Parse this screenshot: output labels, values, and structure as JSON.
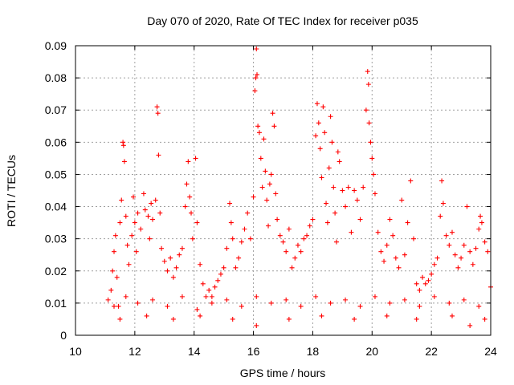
{
  "chart_data": {
    "type": "scatter",
    "title": "Day 070 of 2020, Rate Of TEC Index for receiver p035",
    "xlabel": "GPS time / hours",
    "ylabel": "ROTI / TECUs",
    "xlim": [
      10,
      24
    ],
    "ylim": [
      0,
      0.09
    ],
    "xticks": [
      "10",
      "12",
      "14",
      "16",
      "18",
      "20",
      "22",
      "24"
    ],
    "yticks": [
      "0",
      "0.01",
      "0.02",
      "0.03",
      "0.04",
      "0.05",
      "0.06",
      "0.07",
      "0.08",
      "0.09"
    ],
    "grid": true,
    "marker": "+",
    "series": [
      {
        "name": "ROTI",
        "color": "#ff0000",
        "points": [
          [
            11.1,
            0.011
          ],
          [
            11.2,
            0.014
          ],
          [
            11.25,
            0.02
          ],
          [
            11.3,
            0.026
          ],
          [
            11.35,
            0.031
          ],
          [
            11.4,
            0.018
          ],
          [
            11.45,
            0.009
          ],
          [
            11.5,
            0.035
          ],
          [
            11.55,
            0.042
          ],
          [
            11.6,
            0.06
          ],
          [
            11.62,
            0.059
          ],
          [
            11.65,
            0.054
          ],
          [
            11.7,
            0.037
          ],
          [
            11.75,
            0.028
          ],
          [
            11.8,
            0.022
          ],
          [
            11.9,
            0.031
          ],
          [
            11.95,
            0.043
          ],
          [
            12.0,
            0.035
          ],
          [
            12.05,
            0.026
          ],
          [
            12.1,
            0.038
          ],
          [
            12.2,
            0.033
          ],
          [
            12.3,
            0.044
          ],
          [
            12.35,
            0.039
          ],
          [
            12.45,
            0.037
          ],
          [
            12.5,
            0.03
          ],
          [
            12.55,
            0.041
          ],
          [
            12.6,
            0.036
          ],
          [
            12.7,
            0.042
          ],
          [
            12.75,
            0.071
          ],
          [
            12.78,
            0.069
          ],
          [
            12.8,
            0.056
          ],
          [
            12.85,
            0.038
          ],
          [
            12.9,
            0.027
          ],
          [
            13.0,
            0.023
          ],
          [
            13.1,
            0.02
          ],
          [
            13.2,
            0.024
          ],
          [
            13.3,
            0.018
          ],
          [
            13.4,
            0.021
          ],
          [
            13.5,
            0.025
          ],
          [
            13.6,
            0.027
          ],
          [
            13.7,
            0.04
          ],
          [
            13.75,
            0.047
          ],
          [
            13.8,
            0.054
          ],
          [
            13.85,
            0.043
          ],
          [
            13.9,
            0.038
          ],
          [
            13.95,
            0.03
          ],
          [
            14.05,
            0.055
          ],
          [
            14.1,
            0.035
          ],
          [
            14.2,
            0.022
          ],
          [
            14.3,
            0.016
          ],
          [
            14.4,
            0.012
          ],
          [
            14.5,
            0.014
          ],
          [
            14.6,
            0.012
          ],
          [
            14.7,
            0.015
          ],
          [
            14.8,
            0.017
          ],
          [
            14.9,
            0.019
          ],
          [
            15.0,
            0.021
          ],
          [
            15.1,
            0.027
          ],
          [
            15.2,
            0.041
          ],
          [
            15.25,
            0.035
          ],
          [
            15.3,
            0.03
          ],
          [
            15.4,
            0.021
          ],
          [
            15.5,
            0.024
          ],
          [
            15.6,
            0.029
          ],
          [
            15.7,
            0.033
          ],
          [
            15.8,
            0.038
          ],
          [
            15.9,
            0.03
          ],
          [
            16.0,
            0.043
          ],
          [
            16.05,
            0.076
          ],
          [
            16.08,
            0.08
          ],
          [
            16.1,
            0.089
          ],
          [
            16.12,
            0.081
          ],
          [
            16.15,
            0.065
          ],
          [
            16.2,
            0.063
          ],
          [
            16.25,
            0.055
          ],
          [
            16.3,
            0.046
          ],
          [
            16.35,
            0.061
          ],
          [
            16.4,
            0.051
          ],
          [
            16.45,
            0.042
          ],
          [
            16.5,
            0.034
          ],
          [
            16.55,
            0.047
          ],
          [
            16.6,
            0.05
          ],
          [
            16.65,
            0.069
          ],
          [
            16.7,
            0.065
          ],
          [
            16.75,
            0.044
          ],
          [
            16.8,
            0.036
          ],
          [
            16.9,
            0.031
          ],
          [
            17.0,
            0.029
          ],
          [
            17.1,
            0.026
          ],
          [
            17.2,
            0.033
          ],
          [
            17.3,
            0.021
          ],
          [
            17.4,
            0.024
          ],
          [
            17.5,
            0.028
          ],
          [
            17.6,
            0.026
          ],
          [
            17.7,
            0.03
          ],
          [
            17.8,
            0.031
          ],
          [
            17.9,
            0.034
          ],
          [
            18.0,
            0.036
          ],
          [
            18.1,
            0.062
          ],
          [
            18.15,
            0.072
          ],
          [
            18.2,
            0.066
          ],
          [
            18.25,
            0.058
          ],
          [
            18.3,
            0.049
          ],
          [
            18.35,
            0.071
          ],
          [
            18.4,
            0.063
          ],
          [
            18.45,
            0.041
          ],
          [
            18.5,
            0.035
          ],
          [
            18.55,
            0.052
          ],
          [
            18.6,
            0.068
          ],
          [
            18.65,
            0.06
          ],
          [
            18.7,
            0.046
          ],
          [
            18.75,
            0.038
          ],
          [
            18.8,
            0.029
          ],
          [
            18.85,
            0.057
          ],
          [
            18.9,
            0.054
          ],
          [
            19.0,
            0.045
          ],
          [
            19.1,
            0.04
          ],
          [
            19.2,
            0.046
          ],
          [
            19.3,
            0.032
          ],
          [
            19.4,
            0.045
          ],
          [
            19.5,
            0.042
          ],
          [
            19.6,
            0.036
          ],
          [
            19.7,
            0.046
          ],
          [
            19.8,
            0.07
          ],
          [
            19.85,
            0.082
          ],
          [
            19.88,
            0.078
          ],
          [
            19.9,
            0.066
          ],
          [
            19.95,
            0.06
          ],
          [
            20.0,
            0.055
          ],
          [
            20.05,
            0.05
          ],
          [
            20.1,
            0.044
          ],
          [
            20.2,
            0.032
          ],
          [
            20.3,
            0.026
          ],
          [
            20.4,
            0.023
          ],
          [
            20.5,
            0.028
          ],
          [
            20.6,
            0.036
          ],
          [
            20.7,
            0.031
          ],
          [
            20.8,
            0.024
          ],
          [
            20.9,
            0.021
          ],
          [
            21.0,
            0.042
          ],
          [
            21.1,
            0.025
          ],
          [
            21.2,
            0.035
          ],
          [
            21.3,
            0.048
          ],
          [
            21.4,
            0.03
          ],
          [
            21.5,
            0.016
          ],
          [
            21.6,
            0.014
          ],
          [
            21.7,
            0.018
          ],
          [
            21.8,
            0.016
          ],
          [
            21.9,
            0.017
          ],
          [
            22.0,
            0.019
          ],
          [
            22.1,
            0.022
          ],
          [
            22.2,
            0.024
          ],
          [
            22.3,
            0.037
          ],
          [
            22.35,
            0.048
          ],
          [
            22.4,
            0.041
          ],
          [
            22.5,
            0.031
          ],
          [
            22.6,
            0.028
          ],
          [
            22.7,
            0.032
          ],
          [
            22.8,
            0.025
          ],
          [
            22.9,
            0.021
          ],
          [
            23.0,
            0.024
          ],
          [
            23.1,
            0.028
          ],
          [
            23.2,
            0.04
          ],
          [
            23.3,
            0.026
          ],
          [
            23.4,
            0.022
          ],
          [
            23.5,
            0.027
          ],
          [
            23.6,
            0.033
          ],
          [
            23.65,
            0.037
          ],
          [
            23.7,
            0.035
          ],
          [
            23.8,
            0.029
          ],
          [
            23.9,
            0.026
          ],
          [
            24.0,
            0.015
          ],
          [
            11.3,
            0.009
          ],
          [
            11.7,
            0.012
          ],
          [
            12.1,
            0.01
          ],
          [
            12.6,
            0.011
          ],
          [
            13.1,
            0.009
          ],
          [
            13.6,
            0.012
          ],
          [
            14.1,
            0.008
          ],
          [
            14.6,
            0.01
          ],
          [
            15.1,
            0.011
          ],
          [
            15.6,
            0.009
          ],
          [
            16.1,
            0.012
          ],
          [
            16.6,
            0.01
          ],
          [
            17.1,
            0.011
          ],
          [
            17.6,
            0.009
          ],
          [
            18.1,
            0.012
          ],
          [
            18.6,
            0.01
          ],
          [
            19.1,
            0.011
          ],
          [
            19.6,
            0.009
          ],
          [
            20.1,
            0.012
          ],
          [
            20.6,
            0.01
          ],
          [
            21.1,
            0.011
          ],
          [
            21.6,
            0.009
          ],
          [
            22.1,
            0.012
          ],
          [
            22.6,
            0.01
          ],
          [
            23.1,
            0.011
          ],
          [
            23.6,
            0.009
          ],
          [
            11.5,
            0.005
          ],
          [
            12.4,
            0.006
          ],
          [
            13.3,
            0.005
          ],
          [
            14.2,
            0.006
          ],
          [
            15.3,
            0.005
          ],
          [
            16.1,
            0.003
          ],
          [
            17.2,
            0.005
          ],
          [
            18.3,
            0.006
          ],
          [
            19.4,
            0.005
          ],
          [
            20.5,
            0.006
          ],
          [
            21.5,
            0.005
          ],
          [
            22.7,
            0.006
          ],
          [
            23.3,
            0.003
          ],
          [
            23.8,
            0.005
          ]
        ]
      }
    ]
  }
}
